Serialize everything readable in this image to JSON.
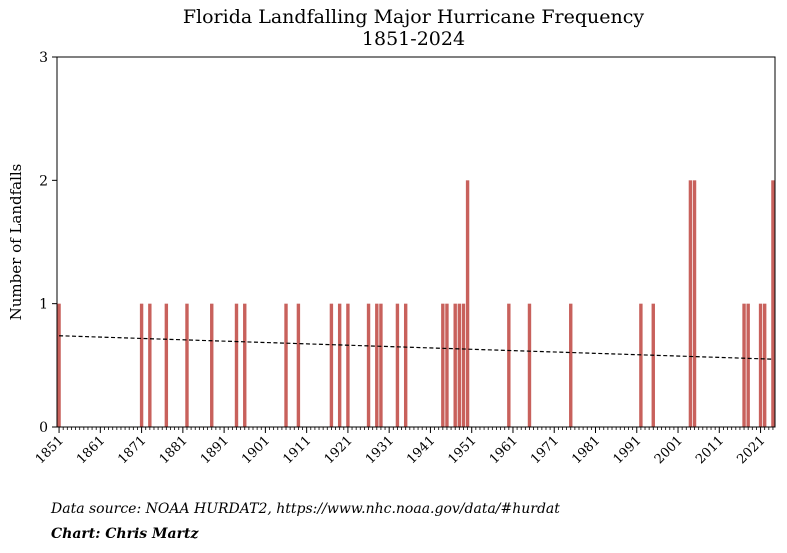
{
  "header": {
    "title": "Florida Landfalling Major Hurricane Frequency",
    "subtitle": "1851-2024"
  },
  "footer": {
    "source": "Data source: NOAA HURDAT2, https://www.nhc.noaa.gov/data/#hurdat",
    "credit": "Chart: Chris Martz"
  },
  "colors": {
    "bar": "#c8615c",
    "trend": "#000000"
  },
  "chart_data": {
    "type": "bar",
    "title": "Florida Landfalling Major Hurricane Frequency",
    "subtitle": "1851-2024",
    "xlabel": "",
    "ylabel": "Number of Landfalls",
    "xlim": [
      1851,
      2024
    ],
    "ylim": [
      0,
      3
    ],
    "yticks": [
      0,
      1,
      2,
      3
    ],
    "xticks": [
      1851,
      1861,
      1871,
      1881,
      1891,
      1901,
      1911,
      1921,
      1931,
      1941,
      1951,
      1961,
      1971,
      1981,
      1991,
      2001,
      2011,
      2021
    ],
    "grid": false,
    "landfalls": [
      {
        "year": 1851,
        "count": 1
      },
      {
        "year": 1871,
        "count": 1
      },
      {
        "year": 1873,
        "count": 1
      },
      {
        "year": 1877,
        "count": 1
      },
      {
        "year": 1882,
        "count": 1
      },
      {
        "year": 1888,
        "count": 1
      },
      {
        "year": 1894,
        "count": 1
      },
      {
        "year": 1896,
        "count": 1
      },
      {
        "year": 1906,
        "count": 1
      },
      {
        "year": 1909,
        "count": 1
      },
      {
        "year": 1917,
        "count": 1
      },
      {
        "year": 1919,
        "count": 1
      },
      {
        "year": 1921,
        "count": 1
      },
      {
        "year": 1926,
        "count": 1
      },
      {
        "year": 1928,
        "count": 1
      },
      {
        "year": 1929,
        "count": 1
      },
      {
        "year": 1933,
        "count": 1
      },
      {
        "year": 1935,
        "count": 1
      },
      {
        "year": 1944,
        "count": 1
      },
      {
        "year": 1945,
        "count": 1
      },
      {
        "year": 1947,
        "count": 1
      },
      {
        "year": 1948,
        "count": 1
      },
      {
        "year": 1949,
        "count": 1
      },
      {
        "year": 1950,
        "count": 2
      },
      {
        "year": 1960,
        "count": 1
      },
      {
        "year": 1965,
        "count": 1
      },
      {
        "year": 1975,
        "count": 1
      },
      {
        "year": 1992,
        "count": 1
      },
      {
        "year": 1995,
        "count": 1
      },
      {
        "year": 2004,
        "count": 2
      },
      {
        "year": 2005,
        "count": 2
      },
      {
        "year": 2017,
        "count": 1
      },
      {
        "year": 2018,
        "count": 1
      },
      {
        "year": 2021,
        "count": 1
      },
      {
        "year": 2022,
        "count": 1
      },
      {
        "year": 2024,
        "count": 2
      }
    ],
    "trend_line": {
      "style": "dashed",
      "x": [
        1851,
        2024
      ],
      "y": [
        0.74,
        0.55
      ]
    }
  }
}
